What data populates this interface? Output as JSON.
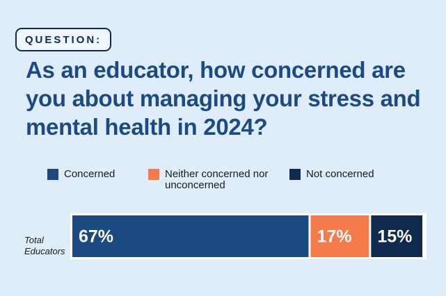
{
  "badge": "QUESTION:",
  "chart_data": {
    "type": "stacked-bar",
    "orientation": "horizontal",
    "title": "As an educator, how concerned are you about managing your stress and mental health in 2024?",
    "categories": [
      "Total Educators"
    ],
    "series": [
      {
        "name": "Concerned",
        "color": "#1a4a80",
        "values": [
          67
        ],
        "value_labels": [
          "67%"
        ]
      },
      {
        "name": "Neither concerned nor unconcerned",
        "color": "#f57b4c",
        "values": [
          17
        ],
        "value_labels": [
          "17%"
        ]
      },
      {
        "name": "Not concerned",
        "color": "#0f2a4d",
        "values": [
          15
        ],
        "value_labels": [
          "15%"
        ]
      }
    ]
  }
}
